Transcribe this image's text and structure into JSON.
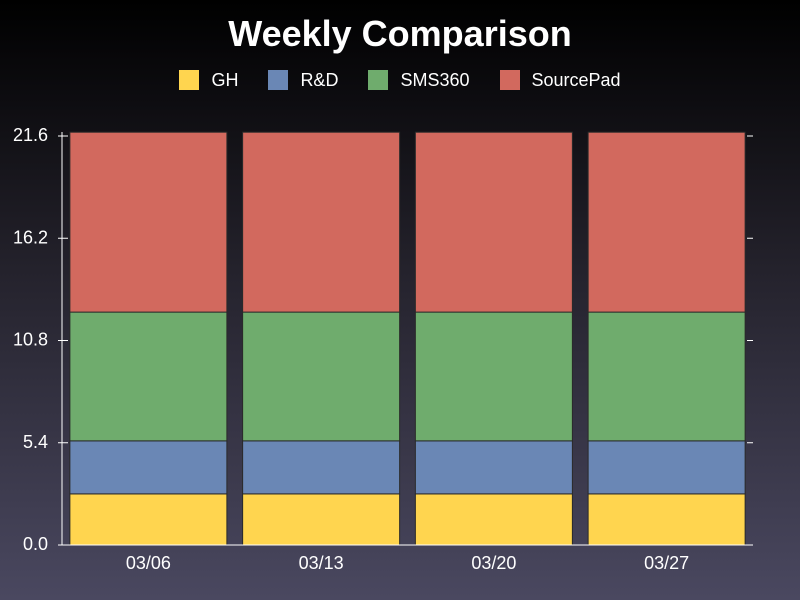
{
  "chart_data": {
    "type": "bar",
    "stacked": true,
    "title": "Weekly Comparison",
    "categories": [
      "03/06",
      "03/13",
      "03/20",
      "03/27"
    ],
    "series": [
      {
        "name": "GH",
        "color": "#ffd54f",
        "values": [
          2.7,
          2.7,
          2.7,
          2.7
        ]
      },
      {
        "name": "R&D",
        "color": "#6a87b5",
        "values": [
          2.8,
          2.8,
          2.8,
          2.8
        ]
      },
      {
        "name": "SMS360",
        "color": "#6fac6d",
        "values": [
          6.8,
          6.8,
          6.8,
          6.8
        ]
      },
      {
        "name": "SourcePad",
        "color": "#d2695e",
        "values": [
          9.5,
          9.5,
          9.5,
          9.5
        ]
      }
    ],
    "ylim": [
      0,
      21.6
    ],
    "yticks": [
      "0.0",
      "5.4",
      "10.8",
      "16.2",
      "21.6"
    ],
    "legend_position": "top",
    "grid": false
  }
}
